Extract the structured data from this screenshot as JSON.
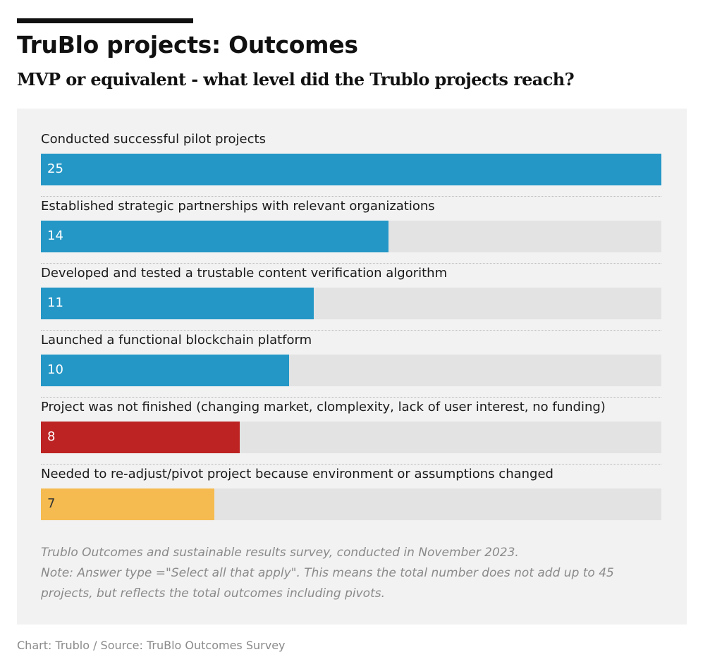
{
  "chart_data": {
    "type": "bar",
    "orientation": "horizontal",
    "title": "TruBlo projects: Outcomes",
    "subtitle": "MVP or equivalent - what level did the Trublo projects reach?",
    "categories": [
      "Conducted successful pilot projects",
      "Established strategic partnerships with relevant organizations",
      "Developed and tested a trustable content verification algorithm",
      "Launched a functional blockchain platform",
      "Project was not finished (changing market, clomplexity, lack of user interest, no funding)",
      "Needed to re-adjust/pivot project because environment or assumptions changed"
    ],
    "values": [
      25,
      14,
      11,
      10,
      8,
      7
    ],
    "colors": [
      "#2497c6",
      "#2497c6",
      "#2497c6",
      "#2497c6",
      "#bd2323",
      "#f5bb50"
    ],
    "xlim": [
      0,
      25
    ],
    "grid": false,
    "legend": "none"
  },
  "notes": [
    "Trublo Outcomes and sustainable results survey, conducted in November 2023.",
    "Note: Answer type =\"Select all that apply\". This means the total number does not add up to 45",
    "projects, but reflects the total outcomes including pivots."
  ],
  "footer": "Chart: Trublo / Source: TruBlo Outcomes Survey"
}
